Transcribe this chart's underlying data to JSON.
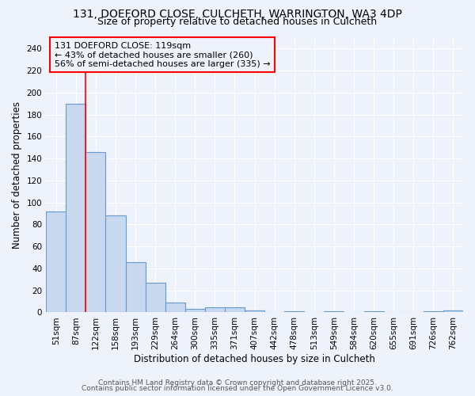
{
  "title1": "131, DOEFORD CLOSE, CULCHETH, WARRINGTON, WA3 4DP",
  "title2": "Size of property relative to detached houses in Culcheth",
  "xlabel": "Distribution of detached houses by size in Culcheth",
  "ylabel": "Number of detached properties",
  "categories": [
    "51sqm",
    "87sqm",
    "122sqm",
    "158sqm",
    "193sqm",
    "229sqm",
    "264sqm",
    "300sqm",
    "335sqm",
    "371sqm",
    "407sqm",
    "442sqm",
    "478sqm",
    "513sqm",
    "549sqm",
    "584sqm",
    "620sqm",
    "655sqm",
    "691sqm",
    "726sqm",
    "762sqm"
  ],
  "values": [
    92,
    190,
    146,
    88,
    46,
    27,
    9,
    3,
    5,
    5,
    2,
    0,
    1,
    0,
    1,
    0,
    1,
    0,
    0,
    1,
    2
  ],
  "bar_color": "#c8d8ee",
  "bar_edge_color": "#6699cc",
  "vline_color": "red",
  "vline_index": 2,
  "annotation_box_text": "131 DOEFORD CLOSE: 119sqm\n← 43% of detached houses are smaller (260)\n56% of semi-detached houses are larger (335) →",
  "annotation_box_color": "red",
  "ylim": [
    0,
    250
  ],
  "yticks": [
    0,
    20,
    40,
    60,
    80,
    100,
    120,
    140,
    160,
    180,
    200,
    220,
    240
  ],
  "footer1": "Contains HM Land Registry data © Crown copyright and database right 2025.",
  "footer2": "Contains public sector information licensed under the Open Government Licence v3.0.",
  "background_color": "#eef2fb",
  "grid_color": "#ffffff",
  "title_fontsize": 10,
  "subtitle_fontsize": 9,
  "axis_label_fontsize": 8.5,
  "tick_fontsize": 7.5,
  "annotation_fontsize": 8,
  "footer_fontsize": 6.5
}
